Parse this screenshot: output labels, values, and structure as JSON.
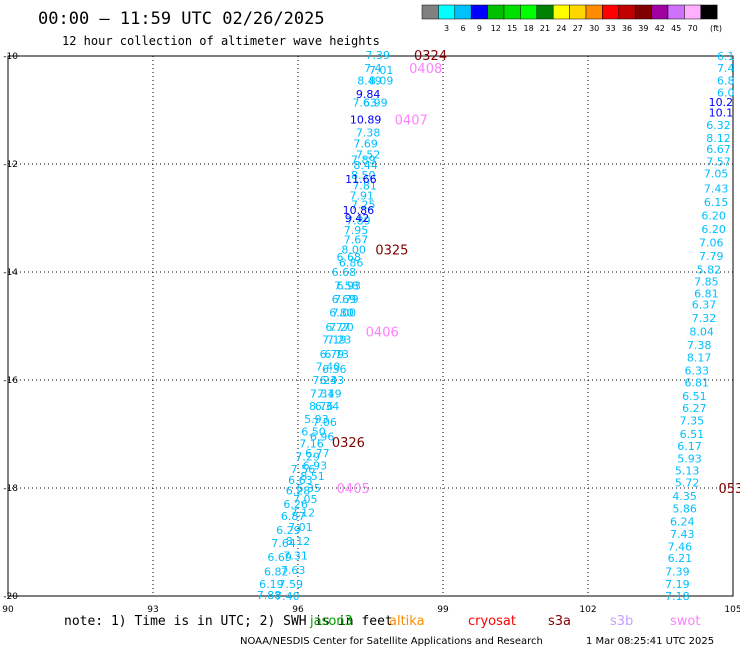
{
  "header": {
    "title": "00:00 – 11:59 UTC 02/26/2025",
    "subtitle": "12 hour collection of altimeter wave heights"
  },
  "legend": {
    "unit_label": "(ft)",
    "bins": [
      {
        "label": "",
        "color": "#808080"
      },
      {
        "label": "3",
        "color": "#00ffff"
      },
      {
        "label": "6",
        "color": "#00bfff"
      },
      {
        "label": "9",
        "color": "#0000ff"
      },
      {
        "label": "12",
        "color": "#00c000"
      },
      {
        "label": "15",
        "color": "#00e000"
      },
      {
        "label": "18",
        "color": "#00ff00"
      },
      {
        "label": "21",
        "color": "#008000"
      },
      {
        "label": "24",
        "color": "#ffff00"
      },
      {
        "label": "27",
        "color": "#ffd700"
      },
      {
        "label": "30",
        "color": "#ff8c00"
      },
      {
        "label": "33",
        "color": "#ff0000"
      },
      {
        "label": "36",
        "color": "#c00000"
      },
      {
        "label": "39",
        "color": "#800000"
      },
      {
        "label": "42",
        "color": "#a000a0"
      },
      {
        "label": "45",
        "color": "#d070ff"
      },
      {
        "label": "70",
        "color": "#ffb0ff"
      },
      {
        "label": "",
        "color": "#000000"
      }
    ]
  },
  "footer": {
    "note": "note: 1) Time is in UTC; 2) SWH is in feet",
    "credit": "NOAA/NESDIS Center for Satellite Applications and Research",
    "timestamp": "1 Mar 08:25:41 UTC 2025",
    "satellites": [
      {
        "name": "jason3",
        "color": "#00a000"
      },
      {
        "name": "altika",
        "color": "#ff8c00"
      },
      {
        "name": "cryosat",
        "color": "#ff0000"
      },
      {
        "name": "s3a",
        "color": "#800000"
      },
      {
        "name": "s3b",
        "color": "#c8a0ff"
      },
      {
        "name": "swot",
        "color": "#ff80ff"
      }
    ]
  },
  "chart_data": {
    "type": "scatter",
    "title": "00:00 – 11:59 UTC 02/26/2025",
    "subtitle": "12 hour collection of altimeter wave heights",
    "xlim": [
      90,
      105
    ],
    "ylim": [
      -20,
      -10
    ],
    "x_ticks": [
      "90",
      "93",
      "96",
      "99",
      "102",
      "105"
    ],
    "y_ticks": [
      "-10",
      "-12",
      "-14",
      "-16",
      "-18",
      "-20"
    ],
    "grid": true,
    "pass_labels": [
      {
        "label": "0324",
        "x": 98.4,
        "y": -9.98,
        "color": "#800000"
      },
      {
        "label": "0408",
        "x": 98.3,
        "y": -10.22,
        "color": "#ff80ff"
      },
      {
        "label": "0407",
        "x": 98.0,
        "y": -11.18,
        "color": "#ff80ff"
      },
      {
        "label": "0325",
        "x": 97.6,
        "y": -13.58,
        "color": "#800000"
      },
      {
        "label": "0406",
        "x": 97.4,
        "y": -15.1,
        "color": "#ff80ff"
      },
      {
        "label": "0326",
        "x": 96.7,
        "y": -17.15,
        "color": "#800000"
      },
      {
        "label": "0405",
        "x": 96.8,
        "y": -18.0,
        "color": "#ff80ff"
      },
      {
        "label": "053",
        "x": 104.7,
        "y": -18.0,
        "color": "#800000"
      }
    ],
    "series": [
      {
        "name": "",
        "color": "#00bfff",
        "points": [
          {
            "x": 97.65,
            "y": -9.98,
            "v": "7.39"
          },
          {
            "x": 97.55,
            "y": -10.22,
            "v": "7.4"
          },
          {
            "x": 97.72,
            "y": -10.26,
            "v": "7.01"
          },
          {
            "x": 97.48,
            "y": -10.45,
            "v": "8.49"
          },
          {
            "x": 97.72,
            "y": -10.45,
            "v": "8.09"
          },
          {
            "x": 97.38,
            "y": -10.86,
            "v": "7.63"
          },
          {
            "x": 97.6,
            "y": -10.86,
            "v": "6.99"
          },
          {
            "x": 97.45,
            "y": -11.42,
            "v": "7.38"
          },
          {
            "x": 97.4,
            "y": -11.62,
            "v": "7.69"
          },
          {
            "x": 97.45,
            "y": -11.82,
            "v": "7.52"
          },
          {
            "x": 97.35,
            "y": -11.92,
            "v": "7.89"
          },
          {
            "x": 97.4,
            "y": -12.02,
            "v": "8.44"
          },
          {
            "x": 97.35,
            "y": -12.2,
            "v": "8.50"
          },
          {
            "x": 97.38,
            "y": -12.4,
            "v": "7.81"
          },
          {
            "x": 97.32,
            "y": -12.58,
            "v": "7.91"
          },
          {
            "x": 97.35,
            "y": -12.75,
            "v": "7.25"
          },
          {
            "x": 97.25,
            "y": -13.05,
            "v": "7.89"
          },
          {
            "x": 97.2,
            "y": -13.22,
            "v": "7.95"
          },
          {
            "x": 97.2,
            "y": -13.4,
            "v": "7.67"
          },
          {
            "x": 97.15,
            "y": -13.58,
            "v": "8.00"
          },
          {
            "x": 97.05,
            "y": -13.72,
            "v": "6.68"
          },
          {
            "x": 97.1,
            "y": -13.82,
            "v": "6.86"
          },
          {
            "x": 96.95,
            "y": -14.0,
            "v": "6.68"
          },
          {
            "x": 97.0,
            "y": -14.25,
            "v": "7.58"
          },
          {
            "x": 97.05,
            "y": -14.25,
            "v": "6.93"
          },
          {
            "x": 96.95,
            "y": -14.5,
            "v": "6.69"
          },
          {
            "x": 97.0,
            "y": -14.5,
            "v": "7.79"
          },
          {
            "x": 96.9,
            "y": -14.75,
            "v": "6.80"
          },
          {
            "x": 96.95,
            "y": -14.75,
            "v": "7.00"
          },
          {
            "x": 96.82,
            "y": -15.02,
            "v": "6.77"
          },
          {
            "x": 96.9,
            "y": -15.02,
            "v": "7.20"
          },
          {
            "x": 96.75,
            "y": -15.25,
            "v": "7.19"
          },
          {
            "x": 96.85,
            "y": -15.25,
            "v": "7.23"
          },
          {
            "x": 96.7,
            "y": -15.52,
            "v": "6.79"
          },
          {
            "x": 96.8,
            "y": -15.52,
            "v": "6.73"
          },
          {
            "x": 96.62,
            "y": -15.75,
            "v": "7.40"
          },
          {
            "x": 96.75,
            "y": -15.8,
            "v": "6.36"
          },
          {
            "x": 96.55,
            "y": -16.0,
            "v": "7.24"
          },
          {
            "x": 96.7,
            "y": -16.0,
            "v": "6.33"
          },
          {
            "x": 96.5,
            "y": -16.25,
            "v": "7.31"
          },
          {
            "x": 96.65,
            "y": -16.25,
            "v": "7.49"
          },
          {
            "x": 96.48,
            "y": -16.48,
            "v": "8.76"
          },
          {
            "x": 96.6,
            "y": -16.48,
            "v": "6.34"
          },
          {
            "x": 96.38,
            "y": -16.72,
            "v": "5.93"
          },
          {
            "x": 96.55,
            "y": -16.78,
            "v": "7.06"
          },
          {
            "x": 96.32,
            "y": -16.95,
            "v": "6.50"
          },
          {
            "x": 96.5,
            "y": -17.05,
            "v": "6.96"
          },
          {
            "x": 96.28,
            "y": -17.18,
            "v": "7.16"
          },
          {
            "x": 96.4,
            "y": -17.35,
            "v": "6.77"
          },
          {
            "x": 96.2,
            "y": -17.42,
            "v": "7.29"
          },
          {
            "x": 96.35,
            "y": -17.58,
            "v": "6.93"
          },
          {
            "x": 96.1,
            "y": -17.65,
            "v": "7.56"
          },
          {
            "x": 96.3,
            "y": -17.78,
            "v": "8.51"
          },
          {
            "x": 96.05,
            "y": -17.85,
            "v": "6.63"
          },
          {
            "x": 96.22,
            "y": -18.0,
            "v": "6.35"
          },
          {
            "x": 96.0,
            "y": -18.05,
            "v": "6.28"
          },
          {
            "x": 96.15,
            "y": -18.2,
            "v": "7.05"
          },
          {
            "x": 95.95,
            "y": -18.3,
            "v": "6.26"
          },
          {
            "x": 96.1,
            "y": -18.45,
            "v": "7.12"
          },
          {
            "x": 95.9,
            "y": -18.52,
            "v": "6.87"
          },
          {
            "x": 96.05,
            "y": -18.72,
            "v": "7.01"
          },
          {
            "x": 95.8,
            "y": -18.78,
            "v": "6.29"
          },
          {
            "x": 96.0,
            "y": -18.98,
            "v": "8.12"
          },
          {
            "x": 95.7,
            "y": -19.02,
            "v": "7.64"
          },
          {
            "x": 95.95,
            "y": -19.25,
            "v": "7.31"
          },
          {
            "x": 95.62,
            "y": -19.28,
            "v": "6.69"
          },
          {
            "x": 95.9,
            "y": -19.52,
            "v": "7.63"
          },
          {
            "x": 95.55,
            "y": -19.55,
            "v": "6.82"
          },
          {
            "x": 95.85,
            "y": -19.78,
            "v": "7.59"
          },
          {
            "x": 95.45,
            "y": -19.78,
            "v": "6.19"
          },
          {
            "x": 95.4,
            "y": -19.98,
            "v": "7.88"
          },
          {
            "x": 95.78,
            "y": -20.0,
            "v": "7.40"
          },
          {
            "x": 104.85,
            "y": -10.0,
            "v": "6.1"
          },
          {
            "x": 104.85,
            "y": -10.22,
            "v": "7.4"
          },
          {
            "x": 104.85,
            "y": -10.45,
            "v": "6.8"
          },
          {
            "x": 104.85,
            "y": -10.68,
            "v": "6.0"
          },
          {
            "x": 104.7,
            "y": -11.28,
            "v": "6.32"
          },
          {
            "x": 104.7,
            "y": -11.52,
            "v": "8.12"
          },
          {
            "x": 104.7,
            "y": -11.72,
            "v": "6.67"
          },
          {
            "x": 104.7,
            "y": -11.95,
            "v": "7.57"
          },
          {
            "x": 104.65,
            "y": -12.18,
            "v": "7.05"
          },
          {
            "x": 104.65,
            "y": -12.45,
            "v": "7.43"
          },
          {
            "x": 104.65,
            "y": -12.7,
            "v": "6.15"
          },
          {
            "x": 104.6,
            "y": -12.95,
            "v": "6.20"
          },
          {
            "x": 104.6,
            "y": -13.2,
            "v": "6.20"
          },
          {
            "x": 104.55,
            "y": -13.45,
            "v": "7.06"
          },
          {
            "x": 104.55,
            "y": -13.7,
            "v": "7.79"
          },
          {
            "x": 104.5,
            "y": -13.95,
            "v": "5.82"
          },
          {
            "x": 104.45,
            "y": -14.18,
            "v": "7.85"
          },
          {
            "x": 104.45,
            "y": -14.4,
            "v": "6.81"
          },
          {
            "x": 104.4,
            "y": -14.6,
            "v": "6.37"
          },
          {
            "x": 104.4,
            "y": -14.85,
            "v": "7.32"
          },
          {
            "x": 104.35,
            "y": -15.1,
            "v": "8.04"
          },
          {
            "x": 104.3,
            "y": -15.35,
            "v": "7.38"
          },
          {
            "x": 104.3,
            "y": -15.58,
            "v": "8.17"
          },
          {
            "x": 104.25,
            "y": -15.82,
            "v": "6.33"
          },
          {
            "x": 104.25,
            "y": -16.05,
            "v": "6.81"
          },
          {
            "x": 104.2,
            "y": -16.3,
            "v": "6.51"
          },
          {
            "x": 104.2,
            "y": -16.52,
            "v": "6.27"
          },
          {
            "x": 104.15,
            "y": -16.75,
            "v": "7.35"
          },
          {
            "x": 104.15,
            "y": -17.0,
            "v": "6.51"
          },
          {
            "x": 104.1,
            "y": -17.22,
            "v": "6.17"
          },
          {
            "x": 104.1,
            "y": -17.45,
            "v": "5.93"
          },
          {
            "x": 104.05,
            "y": -17.68,
            "v": "5.13"
          },
          {
            "x": 104.05,
            "y": -17.9,
            "v": "5.72"
          },
          {
            "x": 104.0,
            "y": -18.15,
            "v": "4.35"
          },
          {
            "x": 104.0,
            "y": -18.38,
            "v": "5.86"
          },
          {
            "x": 103.95,
            "y": -18.62,
            "v": "6.24"
          },
          {
            "x": 103.95,
            "y": -18.85,
            "v": "7.43"
          },
          {
            "x": 103.9,
            "y": -19.08,
            "v": "7.46"
          },
          {
            "x": 103.9,
            "y": -19.3,
            "v": "6.21"
          },
          {
            "x": 103.85,
            "y": -19.55,
            "v": "7.39"
          },
          {
            "x": 103.85,
            "y": -19.78,
            "v": "7.19"
          },
          {
            "x": 103.85,
            "y": -20.0,
            "v": "7.18"
          }
        ]
      },
      {
        "name": "",
        "color": "#0000ff",
        "points": [
          {
            "x": 97.45,
            "y": -10.7,
            "v": "9.84"
          },
          {
            "x": 97.4,
            "y": -11.18,
            "v": "10.89"
          },
          {
            "x": 97.3,
            "y": -12.28,
            "v": "11.66"
          },
          {
            "x": 97.25,
            "y": -12.85,
            "v": "10.86"
          },
          {
            "x": 97.22,
            "y": -13.0,
            "v": "9.42"
          },
          {
            "x": 104.75,
            "y": -10.85,
            "v": "10.2"
          },
          {
            "x": 104.75,
            "y": -11.05,
            "v": "10.1"
          }
        ]
      }
    ]
  }
}
